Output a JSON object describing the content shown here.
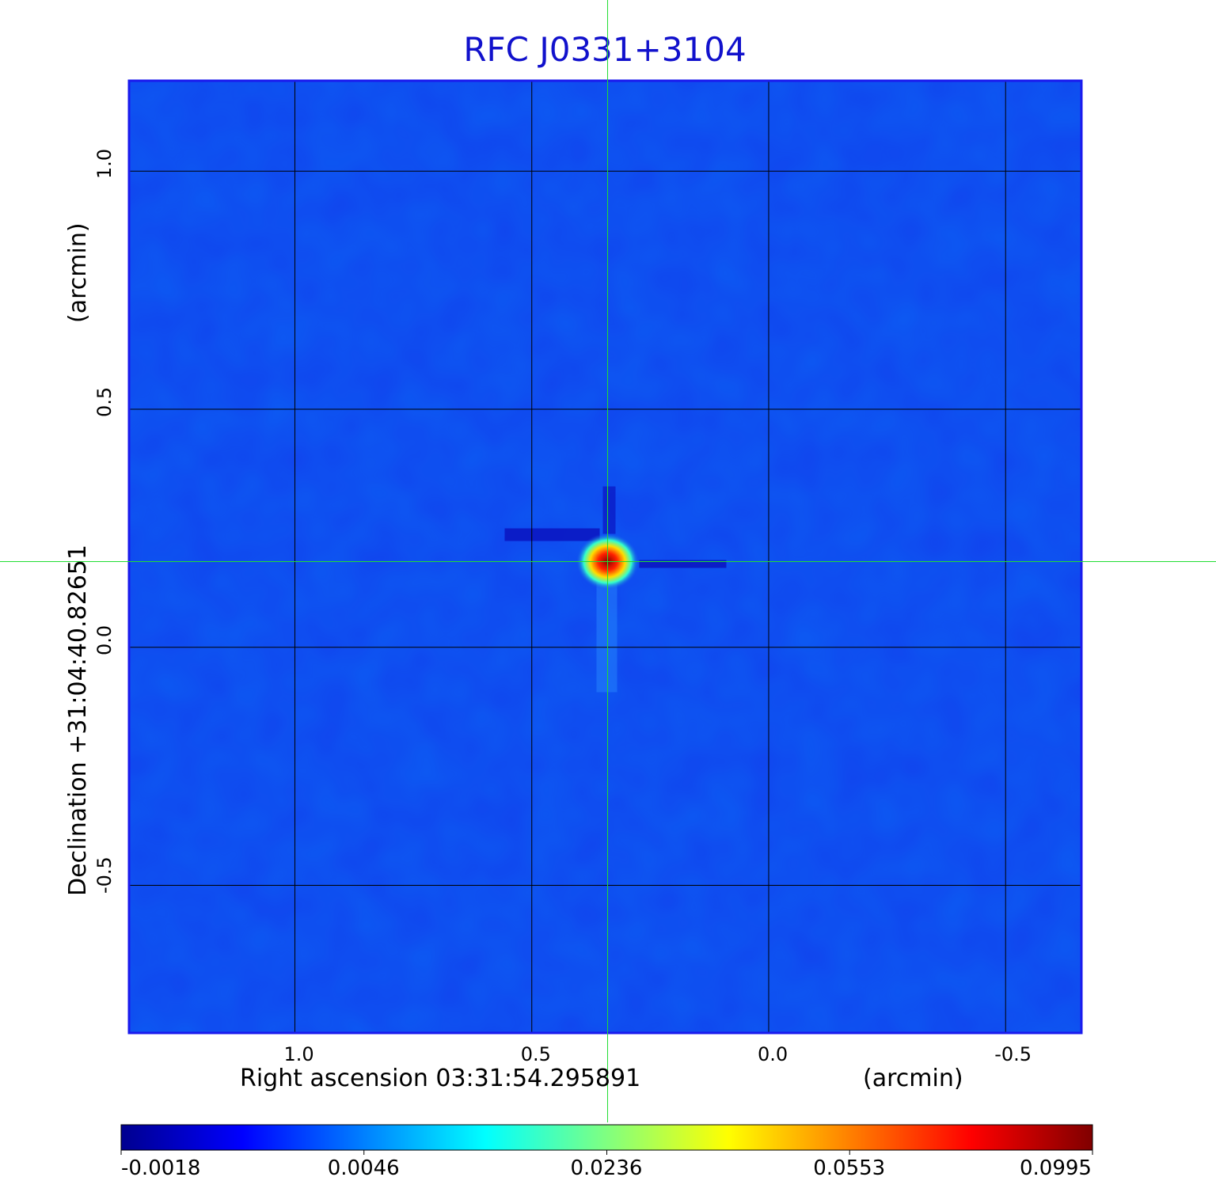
{
  "chart_data": {
    "type": "heatmap",
    "title": "RFC J0331+3104",
    "xlabel": "Right ascension  03:31:54.295891",
    "xlabel_unit": "(arcmin)",
    "ylabel": "Declination  +31:04:40.82651",
    "ylabel_unit": "(arcmin)",
    "x_ticks": [
      "1.0",
      "0.5",
      "0.0",
      "-0.5"
    ],
    "x_tick_values": [
      1.0,
      0.5,
      0.0,
      -0.5
    ],
    "y_ticks": [
      "1.0",
      "0.5",
      "0.0",
      "-0.5"
    ],
    "y_tick_values": [
      1.0,
      0.5,
      0.0,
      -0.5
    ],
    "xlim": [
      1.35,
      -0.66
    ],
    "ylim": [
      -0.81,
      1.19
    ],
    "grid": true,
    "crosshair": {
      "x": 0.34,
      "y": 0.18,
      "color": "#22dd33"
    },
    "source_peak": {
      "x": 0.34,
      "y": 0.18,
      "value": 0.0995
    },
    "colorbar": {
      "ticks": [
        "-0.0018",
        "0.0046",
        "0.0236",
        "0.0553",
        "0.0995"
      ],
      "tick_values": [
        -0.0018,
        0.0046,
        0.0236,
        0.0553,
        0.0995
      ],
      "colormap": [
        "#00008f",
        "#0000ff",
        "#0080ff",
        "#00ffff",
        "#80ff80",
        "#ffff00",
        "#ff8000",
        "#ff0000",
        "#800000"
      ]
    },
    "background_color": "#1144ee",
    "frame_color": "#1a1aee"
  }
}
